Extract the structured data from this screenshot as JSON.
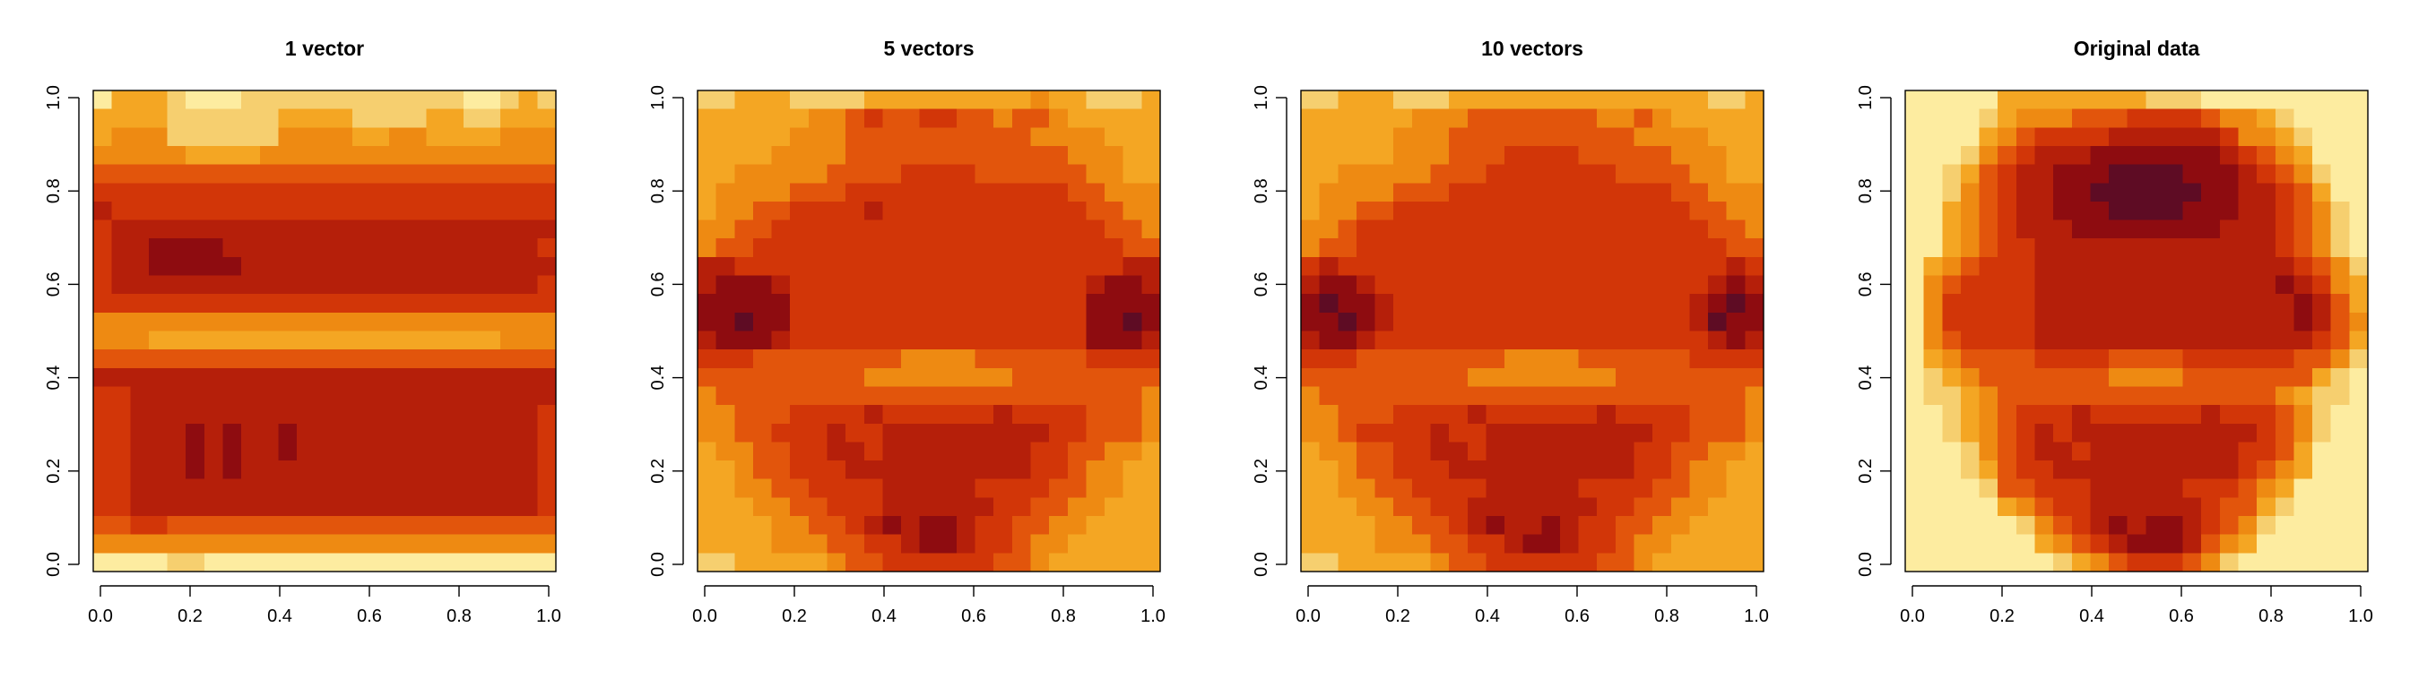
{
  "figure": {
    "layout": "1x4 image panels"
  },
  "palette": [
    "#ffffc8",
    "#fdeca0",
    "#f6cf6f",
    "#f4a623",
    "#ee8a12",
    "#e2550c",
    "#d23608",
    "#b51f0a",
    "#8e0c10",
    "#5e0c24"
  ],
  "chart_data": [
    {
      "type": "heatmap",
      "title": "1 vector",
      "xlabel": "",
      "ylabel": "",
      "xlim": [
        0,
        1
      ],
      "ylim": [
        0,
        1
      ],
      "xticks": [
        "0.0",
        "0.2",
        "0.4",
        "0.6",
        "0.8",
        "1.0"
      ],
      "yticks": [
        "0.0",
        "0.2",
        "0.4",
        "0.6",
        "0.8",
        "1.0"
      ],
      "grid": false,
      "rows": [
        "1333211122222222222211232",
        "3333222222333322223322333",
        "3444222222444433443333444",
        "4444433334444444444444444",
        "5555555555555555555555555",
        "6666666666666666666666666",
        "7666666666666666666666666",
        "6777777777777777777777777",
        "6778888777777777777777776",
        "6778888877777777777777777",
        "6777777777777777777777776",
        "6666666666666666666666666",
        "4444444444444444444444444",
        "4443333333333333333333444",
        "5555555555555555555555555",
        "7777777777777777777777777",
        "6677777777777777777777777",
        "6677777777777777777777776",
        "6677787877877777777777776",
        "6677787877877777777777776",
        "6677787877777777777777776",
        "6677777777777777777777776",
        "6677777777777777777777776",
        "5566555555555555555555555",
        "4444444444444444444444444",
        "1111221111111111111111111"
      ]
    },
    {
      "type": "heatmap",
      "title": "5 vectors",
      "xlabel": "",
      "ylabel": "",
      "xlim": [
        0,
        1
      ],
      "ylim": [
        0,
        1
      ],
      "xticks": [
        "0.0",
        "0.2",
        "0.4",
        "0.6",
        "0.8",
        "1.0"
      ],
      "yticks": [
        "0.0",
        "0.2",
        "0.4",
        "0.6",
        "0.8",
        "1.0"
      ],
      "grid": false,
      "rows": [
        "2233322223333333334332223",
        "3333334456556655455433333",
        "3333344455555555554444333",
        "3333444455555555555544433",
        "3344444555566665555554433",
        "3444455566666666666655444",
        "3445566667666666666665544",
        "4455666666666666666666554",
        "4556666666666666666666655",
        "7766666666666666666666677",
        "7888766666666666666667887",
        "8888866666666666666668888",
        "8898866666666666666668898",
        "7888766666666666666668887",
        "6665555555544445555556666",
        "5555555554444444455555555",
        "4555555555555555555555554",
        "4455566667666666766665554",
        "4455666766777777777665554",
        "3445566776777777776655443",
        "3345566677777777776654433",
        "3344556666777776666554433",
        "3334455666777777665544333",
        "3333445567878876655443333",
        "3333444556678876654433333",
        "2233333455666666554333333"
      ]
    },
    {
      "type": "heatmap",
      "title": "10 vectors",
      "xlabel": "",
      "ylabel": "",
      "xlim": [
        0,
        1
      ],
      "ylim": [
        0,
        1
      ],
      "xticks": [
        "0.0",
        "0.2",
        "0.4",
        "0.6",
        "0.8",
        "1.0"
      ],
      "yticks": [
        "0.0",
        "0.2",
        "0.4",
        "0.6",
        "0.8",
        "1.0"
      ],
      "grid": false,
      "rows": [
        "2233322233333333333333223",
        "3333334445555555445433333",
        "3333344455555555554444333",
        "3333344455566665555544433",
        "3344444555666666655554433",
        "3444455566666666666655444",
        "3445566666666666666665544",
        "4456666666666666666666554",
        "4556666666666666666666655",
        "6766666666666666666666676",
        "7887666666666666666666787",
        "8988766666666666666667898",
        "8898766666666666666667988",
        "7887666666666666666666787",
        "6665555555544445555556666",
        "5555555554444444455555555",
        "4555555555555555555555554",
        "4455566667666666766665554",
        "4456666766777777777665554",
        "3445566776777777776655443",
        "3345566677777777776654433",
        "3344556666777776666554433",
        "3334455667777777665544333",
        "3333445567877876655443333",
        "3333444556678876654433333",
        "2233333455666666554333333"
      ]
    },
    {
      "type": "heatmap",
      "title": "Original data",
      "xlabel": "",
      "ylabel": "",
      "xlim": [
        0,
        1
      ],
      "ylim": [
        0,
        1
      ],
      "xticks": [
        "0.0",
        "0.2",
        "0.4",
        "0.6",
        "0.8",
        "1.0"
      ],
      "yticks": [
        "0.0",
        "0.2",
        "0.4",
        "0.6",
        "0.8",
        "1.0"
      ],
      "grid": false,
      "rows": [
        "1111133333333222111111111",
        "1111234445556666544321111",
        "1111345666677777764432111",
        "1112456777888888876543111",
        "1123567788899998887654211",
        "1124567788999999887765311",
        "1134567788899998887765421",
        "1134567778888888877765421",
        "1134566777777777777765421",
        "1345666777777777777776542",
        "1456666777777777777787643",
        "1466666777777777777778753",
        "1466666777777777777778754",
        "1456666777777777777777653",
        "1345555666655556666665542",
        "1234555555544445555555321",
        "1223455555555555555543221",
        "1123456667666666766654211",
        "1123456767777777777654211",
        "1112456776777777776653111",
        "1112356677777777776543111",
        "1111255666777776665431111",
        "1111134566777777655321111",
        "1111112456787887654211111",
        "1111111345678887543111111",
        "1111111123456665421111111"
      ]
    }
  ]
}
